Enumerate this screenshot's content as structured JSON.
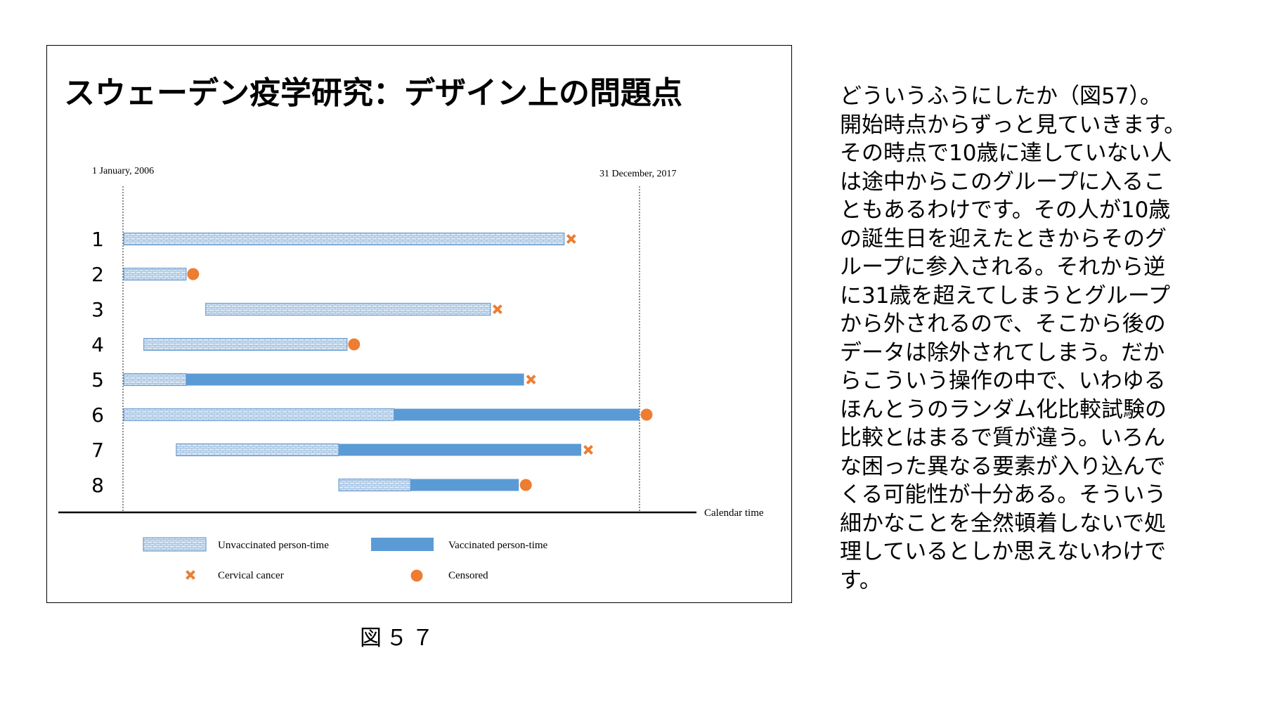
{
  "figure": {
    "title": "スウェーデン疫学研究：デザイン上の問題点",
    "start_label": "1 January, 2006",
    "end_label": "31 December, 2017",
    "axis_label": "Calendar time",
    "rows": [
      {
        "id": "1",
        "unvac": [
          0,
          0.854
        ],
        "vac": null,
        "event": "cancer"
      },
      {
        "id": "2",
        "unvac": [
          0,
          0.121
        ],
        "vac": null,
        "event": "censored"
      },
      {
        "id": "3",
        "unvac": [
          0.159,
          0.711
        ],
        "vac": null,
        "event": "cancer"
      },
      {
        "id": "4",
        "unvac": [
          0.039,
          0.433
        ],
        "vac": null,
        "event": "censored"
      },
      {
        "id": "5",
        "unvac": [
          0,
          0.121
        ],
        "vac": [
          0.121,
          0.776
        ],
        "event": "cancer"
      },
      {
        "id": "6",
        "unvac": [
          0,
          0.524
        ],
        "vac": [
          0.524,
          1.0
        ],
        "event": "censored"
      },
      {
        "id": "7",
        "unvac": [
          0.102,
          0.417
        ],
        "vac": [
          0.417,
          0.887
        ],
        "event": "cancer"
      },
      {
        "id": "8",
        "unvac": [
          0.417,
          0.556
        ],
        "vac": [
          0.556,
          0.766
        ],
        "event": "censored"
      }
    ],
    "legend": {
      "unvaccinated": "Unvaccinated person-time",
      "vaccinated": "Vaccinated person-time",
      "cancer": "Cervical cancer",
      "censored": "Censored"
    },
    "colors": {
      "vaccinated": "#5b9bd5",
      "unvaccinated_border": "#6f9fcf",
      "unvaccinated_fill": "#dbe8f4",
      "event": "#ed7d31"
    }
  },
  "caption": "図５７",
  "side_text": [
    "どういうふうにしたか（図57）。",
    "開始時点からずっと見ていきます。",
    "その時点で10歳に達していない人",
    "は途中からこのグループに入るこ",
    "ともあるわけです。その人が10歳",
    "の誕生日を迎えたときからそのグ",
    "ループに参入される。それから逆",
    "に31歳を超えてしまうとグループ",
    "から外されるので、そこから後の",
    "データは除外されてしまう。だか",
    "らこういう操作の中で、いわゆる",
    "ほんとうのランダム化比較試験の",
    "比較とはまるで質が違う。いろん",
    "な困った異なる要素が入り込んで",
    "くる可能性が十分ある。そういう",
    "細かなことを全然頓着しないで処",
    "理しているとしか思えないわけで",
    "す。"
  ]
}
